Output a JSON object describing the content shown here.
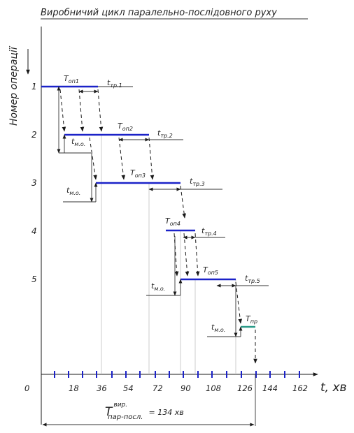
{
  "title": "Виробничий цикл паралельно-послідовного руху",
  "y_axis": {
    "label": "Номер операції",
    "operations": [
      "1",
      "2",
      "3",
      "4",
      "5"
    ]
  },
  "x_axis": {
    "label": "t, хв",
    "origin": "0",
    "ticks": [
      "18",
      "36",
      "54",
      "72",
      "90",
      "108",
      "126",
      "144",
      "162"
    ]
  },
  "operation_labels": [
    {
      "main": "T",
      "sub": "оп1"
    },
    {
      "main": "T",
      "sub": "оп2"
    },
    {
      "main": "T",
      "sub": "оп3"
    },
    {
      "main": "T",
      "sub": "оп4"
    },
    {
      "main": "T",
      "sub": "оп5"
    }
  ],
  "transport_labels": [
    {
      "main": "t",
      "sub": "тр.1"
    },
    {
      "main": "t",
      "sub": "тр.2"
    },
    {
      "main": "t",
      "sub": "тр.3"
    },
    {
      "main": "t",
      "sub": "тр.4"
    },
    {
      "main": "t",
      "sub": "тр.5"
    }
  ],
  "interoperation_labels": [
    {
      "main": "t",
      "sub": "м.о."
    },
    {
      "main": "t",
      "sub": "м.о."
    },
    {
      "main": "t",
      "sub": "м.о."
    },
    {
      "main": "t",
      "sub": "м.о."
    }
  ],
  "natural_process": {
    "main": "T",
    "sub": "пр"
  },
  "cycle_total": {
    "main": "T",
    "sup": "вир.",
    "sub": "пар-посл.",
    "value": "= 134 хв"
  },
  "colors": {
    "bars": "#1b22c8",
    "natural_process": "#2a9a88",
    "lines": "#1a1a1a"
  }
}
